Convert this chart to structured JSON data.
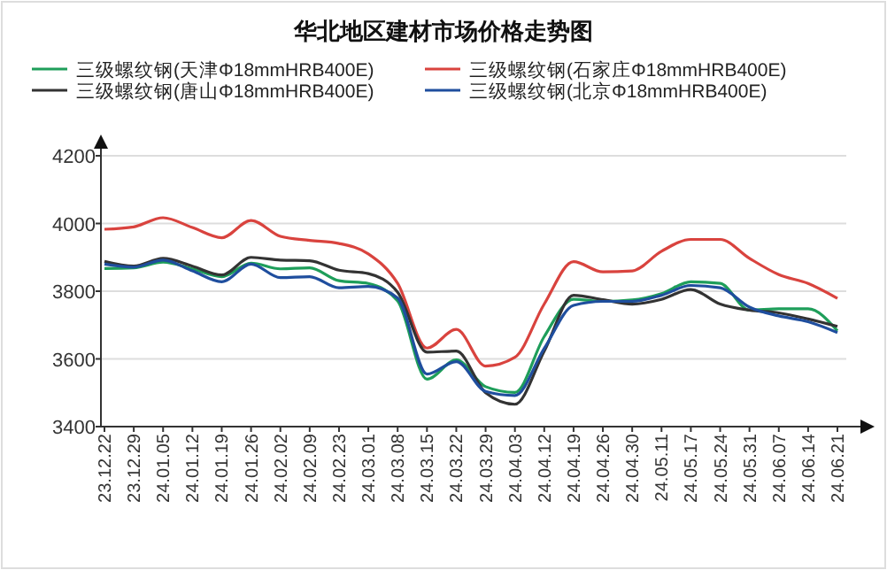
{
  "chart_data": {
    "type": "line",
    "title": "华北地区建材市场价格走势图",
    "categories": [
      "23.12.22",
      "23.12.29",
      "24.01.05",
      "24.01.12",
      "24.01.19",
      "24.01.26",
      "24.02.02",
      "24.02.09",
      "24.02.23",
      "24.03.01",
      "24.03.08",
      "24.03.15",
      "24.03.22",
      "24.03.29",
      "24.04.03",
      "24.04.12",
      "24.04.19",
      "24.04.26",
      "24.04.30",
      "24.05.11",
      "24.05.17",
      "24.05.24",
      "24.05.31",
      "24.06.07",
      "24.06.14",
      "24.06.21"
    ],
    "series": [
      {
        "name": "三级螺纹钢(天津Φ18mmHRB400E)",
        "color": "#1e9e5a",
        "values": [
          3867,
          3869,
          3886,
          3866,
          3843,
          3883,
          3866,
          3869,
          3831,
          3823,
          3771,
          3540,
          3597,
          3518,
          3501,
          3666,
          3776,
          3770,
          3774,
          3793,
          3828,
          3823,
          3744,
          3748,
          3748,
          3683
        ]
      },
      {
        "name": "三级螺纹钢(石家庄Φ18mmHRB400E)",
        "color": "#d9433e",
        "values": [
          3983,
          3990,
          4017,
          3988,
          3958,
          4009,
          3962,
          3950,
          3941,
          3910,
          3823,
          3632,
          3687,
          3579,
          3605,
          3762,
          3887,
          3857,
          3860,
          3918,
          3953,
          3953,
          3897,
          3849,
          3823,
          3779
        ]
      },
      {
        "name": "三级螺纹钢(唐山Φ18mmHRB400E)",
        "color": "#333333",
        "values": [
          3888,
          3874,
          3897,
          3874,
          3848,
          3900,
          3892,
          3890,
          3862,
          3852,
          3797,
          3620,
          3623,
          3500,
          3466,
          3623,
          3788,
          3775,
          3762,
          3776,
          3805,
          3762,
          3744,
          3736,
          3718,
          3696
        ]
      },
      {
        "name": "三级螺纹钢(北京Φ18mmHRB400E)",
        "color": "#1f4e9e",
        "values": [
          3880,
          3871,
          3892,
          3860,
          3828,
          3880,
          3840,
          3843,
          3810,
          3814,
          3780,
          3555,
          3592,
          3504,
          3492,
          3631,
          3758,
          3770,
          3770,
          3788,
          3817,
          3810,
          3753,
          3727,
          3710,
          3678
        ]
      }
    ],
    "ylim": [
      3400,
      4200
    ],
    "yticks": [
      3400,
      3600,
      3800,
      4000,
      4200
    ],
    "grid": "y",
    "legend": "top",
    "marker": "none",
    "line_style": "solid"
  }
}
